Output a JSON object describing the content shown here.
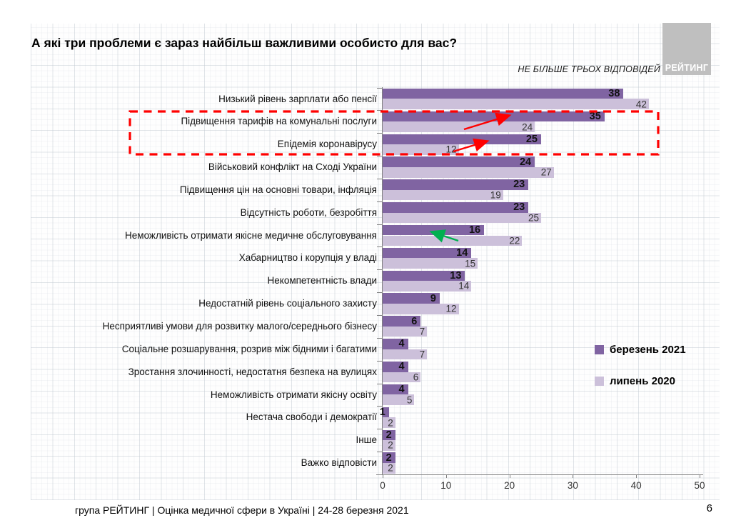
{
  "page": {
    "title": "А які три проблеми є зараз найбільш важливими особисто для вас?",
    "note": "НЕ БІЛЬШЕ ТРЬОХ ВІДПОВІДЕЙ",
    "logo_text": "РЕЙТИНГ",
    "footer": "група РЕЙТИНГ  |  Оцінка медичної сфери в Україні  | 24-28 березня 2021",
    "page_number": "6"
  },
  "colors": {
    "series_march_2021": "#8064A2",
    "series_july_2020": "#CCC0DA",
    "highlight_red": "#FF0000",
    "arrow_green": "#00B050",
    "logo_gray": "#BFBFBF",
    "axis_gray": "#808080"
  },
  "chart_data": {
    "type": "bar",
    "orientation": "horizontal",
    "title": "А які три проблеми є зараз найбільш важливими особисто для вас?",
    "subtitle": "НЕ БІЛЬШЕ ТРЬОХ ВІДПОВІДЕЙ",
    "xlim": [
      0,
      50
    ],
    "x_ticks": [
      0,
      10,
      20,
      30,
      40,
      50
    ],
    "grid": "graph-paper background",
    "legend_position": "right",
    "categories": [
      "Низький рівень зарплати або пенсії",
      "Підвищення тарифів на комунальні послуги",
      "Епідемія коронавірусу",
      "Військовий конфлікт на Сході України",
      "Підвищення цін на основні товари, інфляція",
      "Відсутність роботи, безробіття",
      "Неможливість отримати якісне медичне обслуговування",
      "Хабарництво і корупція у владі",
      "Некомпетентність влади",
      "Недостатній рівень соціального захисту",
      "Несприятливі умови для розвитку малого/середнього бізнесу",
      "Соціальне розшарування, розрив між бідними і багатими",
      "Зростання злочинності, недостатня безпека на вулицях",
      "Неможливість отримати якісну освіту",
      "Нестача свободи і демократії",
      "Інше",
      "Важко відповісти"
    ],
    "series": [
      {
        "name": "березень 2021",
        "color": "#8064A2",
        "values": [
          38,
          35,
          25,
          24,
          23,
          23,
          16,
          14,
          13,
          9,
          6,
          4,
          4,
          4,
          1,
          2,
          2
        ]
      },
      {
        "name": "липень 2020",
        "color": "#CCC0DA",
        "values": [
          42,
          24,
          12,
          27,
          19,
          25,
          22,
          15,
          14,
          12,
          7,
          7,
          6,
          5,
          2,
          2,
          2
        ]
      }
    ],
    "annotations": {
      "highlight_box_rows": [
        "Підвищення тарифів на комунальні послуги",
        "Епідемія коронавірусу"
      ],
      "red_arrows_point_to": [
        "Підвищення тарифів на комунальні послуги",
        "Епідемія коронавірусу"
      ],
      "green_arrow_points_to": "Неможливість отримати якісне медичне обслуговування"
    }
  }
}
